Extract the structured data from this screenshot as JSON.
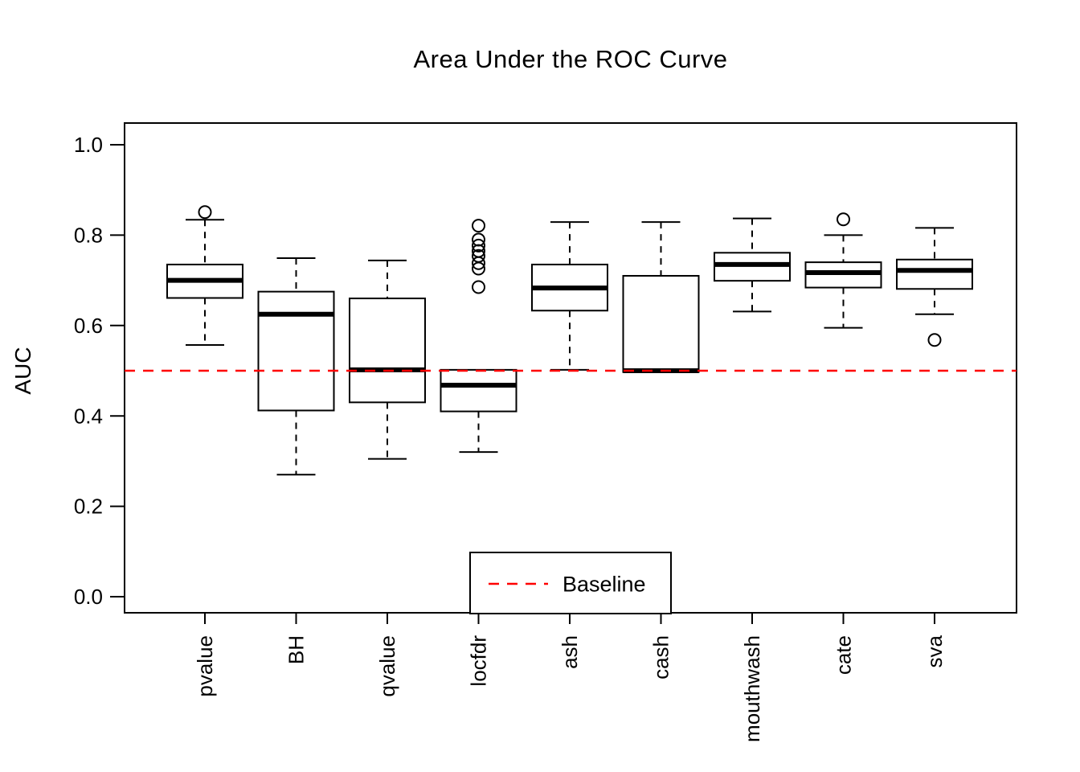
{
  "chart_data": {
    "type": "boxplot",
    "title": "Area Under the ROC Curve",
    "xlabel": "",
    "ylabel": "AUC",
    "ylim": [
      0.0,
      1.0
    ],
    "yticks": [
      0.0,
      0.2,
      0.4,
      0.6,
      0.8,
      1.0
    ],
    "ytick_labels": [
      "0.0",
      "0.2",
      "0.4",
      "0.6",
      "0.8",
      "1.0"
    ],
    "categories": [
      "pvalue",
      "BH",
      "qvalue",
      "locfdr",
      "ash",
      "cash",
      "mouthwash",
      "cate",
      "sva"
    ],
    "boxes": [
      {
        "label": "pvalue",
        "whisker_low": 0.557,
        "q1": 0.661,
        "median": 0.7,
        "q3": 0.735,
        "whisker_high": 0.834,
        "outliers": [
          0.851
        ]
      },
      {
        "label": "BH",
        "whisker_low": 0.27,
        "q1": 0.412,
        "median": 0.625,
        "q3": 0.675,
        "whisker_high": 0.749,
        "outliers": []
      },
      {
        "label": "qvalue",
        "whisker_low": 0.305,
        "q1": 0.43,
        "median": 0.502,
        "q3": 0.66,
        "whisker_high": 0.744,
        "outliers": []
      },
      {
        "label": "locfdr",
        "whisker_low": 0.32,
        "q1": 0.41,
        "median": 0.468,
        "q3": 0.502,
        "whisker_high": 0.502,
        "outliers": [
          0.821,
          0.79,
          0.777,
          0.765,
          0.754,
          0.738,
          0.726,
          0.685
        ]
      },
      {
        "label": "ash",
        "whisker_low": 0.502,
        "q1": 0.633,
        "median": 0.683,
        "q3": 0.735,
        "whisker_high": 0.829,
        "outliers": []
      },
      {
        "label": "cash",
        "whisker_low": 0.497,
        "q1": 0.497,
        "median": 0.5,
        "q3": 0.71,
        "whisker_high": 0.829,
        "outliers": []
      },
      {
        "label": "mouthwash",
        "whisker_low": 0.631,
        "q1": 0.699,
        "median": 0.735,
        "q3": 0.761,
        "whisker_high": 0.837,
        "outliers": []
      },
      {
        "label": "cate",
        "whisker_low": 0.595,
        "q1": 0.684,
        "median": 0.717,
        "q3": 0.74,
        "whisker_high": 0.8,
        "outliers": [
          0.835
        ]
      },
      {
        "label": "sva",
        "whisker_low": 0.625,
        "q1": 0.681,
        "median": 0.722,
        "q3": 0.746,
        "whisker_high": 0.816,
        "outliers": [
          0.568
        ]
      }
    ],
    "baseline": {
      "value": 0.5,
      "label": "Baseline",
      "color": "#FF0000",
      "style": "dashed"
    },
    "legend": {
      "position": "bottom-center",
      "entries": [
        {
          "label": "Baseline",
          "line_color": "#FF0000",
          "line_style": "dashed"
        }
      ]
    },
    "colors": {
      "background": "#FFFFFF",
      "box_fill": "#FFFFFF",
      "box_stroke": "#000000",
      "median": "#000000",
      "baseline": "#FF0000",
      "text": "#000000"
    },
    "grid": "off"
  }
}
